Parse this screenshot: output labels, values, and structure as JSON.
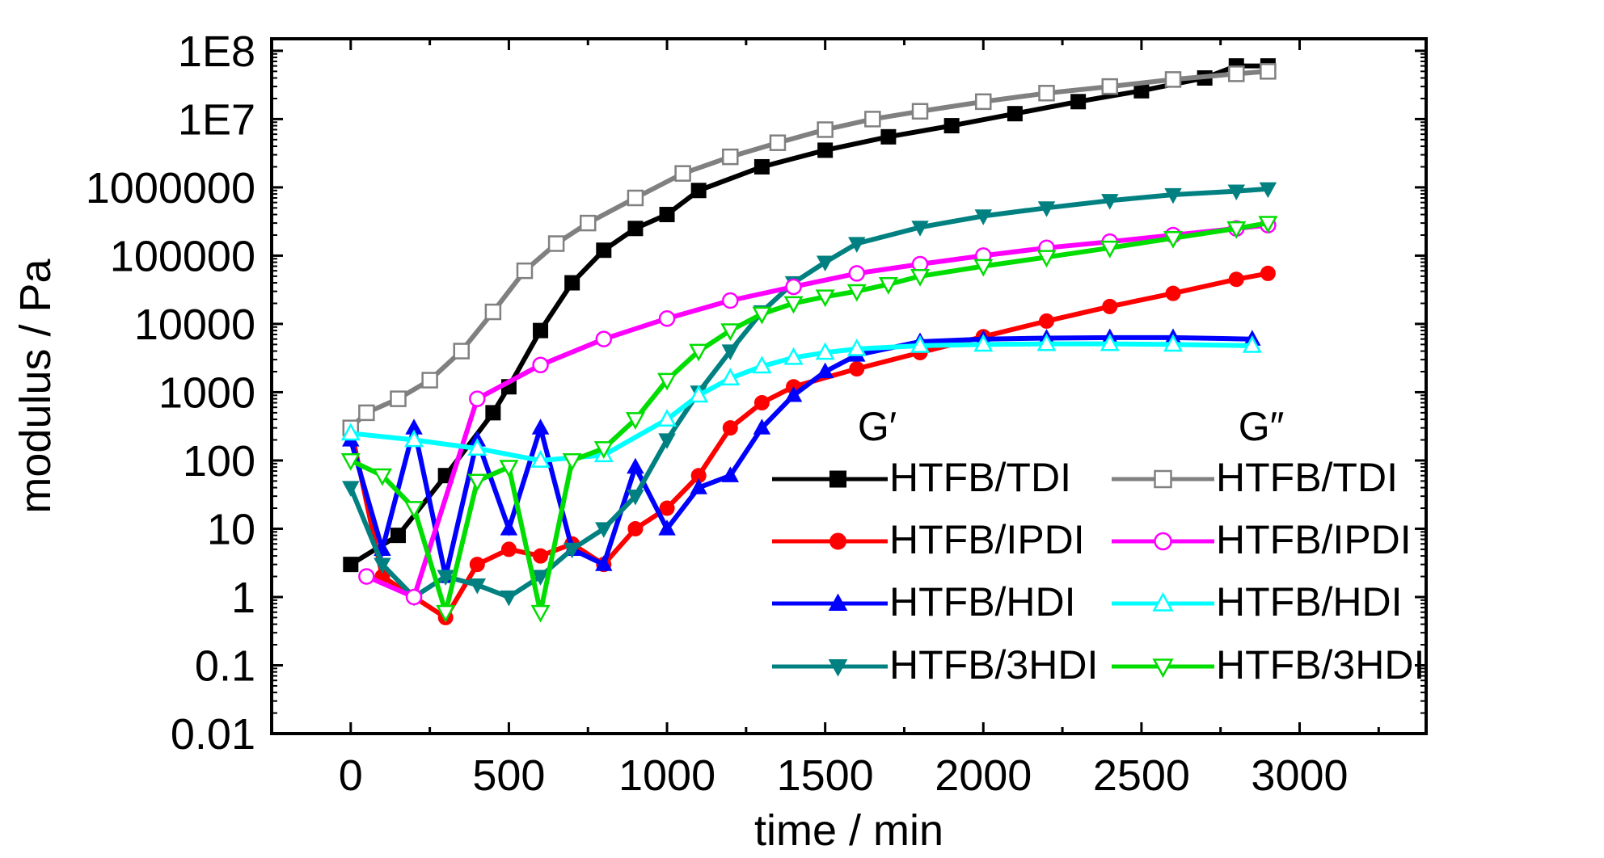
{
  "chart_data": {
    "type": "scatter",
    "xlabel": "time / min",
    "ylabel": "modulus / Pa",
    "xlim": [
      -250,
      3400
    ],
    "ylim": [
      0.01,
      150000000
    ],
    "y_scale": "log",
    "x_ticks": [
      0,
      500,
      1000,
      1500,
      2000,
      2500,
      3000
    ],
    "y_ticks": [
      "1E8",
      "1E7",
      "1000000",
      "100000",
      "10000",
      "1000",
      "100",
      "10",
      "1",
      "0.1",
      "0.01"
    ],
    "legend_headers": [
      "G′",
      "G″"
    ],
    "legend_placement": "bottom-right",
    "series": [
      {
        "name": "HTFB/TDI",
        "modulus": "G′",
        "color": "#000000",
        "marker": "square-filled",
        "x": [
          0,
          150,
          300,
          450,
          500,
          600,
          700,
          800,
          900,
          1000,
          1100,
          1300,
          1500,
          1700,
          1900,
          2100,
          2300,
          2500,
          2700,
          2800,
          2900
        ],
        "y": [
          3,
          8,
          60,
          500,
          1200,
          8000,
          40000,
          120000,
          250000,
          400000,
          900000,
          2000000,
          3500000,
          5500000,
          8000000,
          12000000,
          18000000,
          26000000,
          40000000,
          60000000,
          60000000
        ]
      },
      {
        "name": "HTFB/IPDI",
        "modulus": "G′",
        "color": "#ff0000",
        "marker": "circle-filled",
        "x": [
          0,
          100,
          200,
          300,
          400,
          500,
          600,
          700,
          800,
          900,
          1000,
          1100,
          1200,
          1300,
          1400,
          1600,
          1800,
          2000,
          2200,
          2400,
          2600,
          2800,
          2900
        ],
        "y": [
          300,
          2,
          1,
          0.5,
          3,
          5,
          4,
          6,
          3,
          10,
          20,
          60,
          300,
          700,
          1200,
          2200,
          3800,
          6500,
          11000,
          18000,
          28000,
          45000,
          55000
        ]
      },
      {
        "name": "HTFB/HDI",
        "modulus": "G′",
        "color": "#0000ff",
        "marker": "triangle-up-filled",
        "x": [
          0,
          100,
          200,
          300,
          400,
          500,
          600,
          700,
          800,
          900,
          1000,
          1100,
          1200,
          1300,
          1400,
          1500,
          1600,
          1800,
          2000,
          2200,
          2400,
          2600,
          2850
        ],
        "y": [
          200,
          5,
          300,
          2,
          200,
          10,
          300,
          5,
          3,
          80,
          10,
          40,
          60,
          300,
          900,
          2000,
          3500,
          5500,
          6000,
          6200,
          6300,
          6300,
          6000
        ]
      },
      {
        "name": "HTFB/3HDI",
        "modulus": "G′",
        "color": "#008080",
        "marker": "triangle-down-filled",
        "x": [
          0,
          100,
          200,
          300,
          400,
          500,
          600,
          700,
          800,
          900,
          1000,
          1100,
          1200,
          1300,
          1400,
          1500,
          1600,
          1800,
          2000,
          2200,
          2400,
          2600,
          2800,
          2900
        ],
        "y": [
          40,
          3,
          1,
          2,
          1.5,
          1,
          2,
          5,
          10,
          30,
          200,
          1000,
          4000,
          15000,
          40000,
          80000,
          150000,
          260000,
          380000,
          500000,
          640000,
          780000,
          880000,
          950000
        ]
      },
      {
        "name": "HTFB/TDI",
        "modulus": "G″",
        "color": "#808080",
        "marker": "square-open",
        "x": [
          0,
          50,
          150,
          250,
          350,
          450,
          550,
          650,
          750,
          900,
          1050,
          1200,
          1350,
          1500,
          1650,
          1800,
          2000,
          2200,
          2400,
          2600,
          2800,
          2900
        ],
        "y": [
          300,
          500,
          800,
          1500,
          4000,
          15000,
          60000,
          150000,
          300000,
          700000,
          1600000,
          2800000,
          4500000,
          7000000,
          10000000,
          13000000,
          18000000,
          24000000,
          30000000,
          38000000,
          46000000,
          50000000
        ]
      },
      {
        "name": "HTFB/IPDI",
        "modulus": "G″",
        "color": "#ff00ff",
        "marker": "circle-open",
        "x": [
          50,
          200,
          400,
          600,
          800,
          1000,
          1200,
          1400,
          1600,
          1800,
          2000,
          2200,
          2400,
          2600,
          2800,
          2900
        ],
        "y": [
          2,
          1,
          800,
          2500,
          6000,
          12000,
          22000,
          35000,
          55000,
          75000,
          100000,
          130000,
          160000,
          200000,
          250000,
          280000
        ]
      },
      {
        "name": "HTFB/HDI",
        "modulus": "G″",
        "color": "#00ffff",
        "marker": "triangle-up-open",
        "x": [
          0,
          200,
          400,
          600,
          800,
          1000,
          1100,
          1200,
          1300,
          1400,
          1500,
          1600,
          1800,
          2000,
          2200,
          2400,
          2600,
          2850
        ],
        "y": [
          250,
          200,
          150,
          100,
          120,
          400,
          900,
          1600,
          2400,
          3200,
          3800,
          4300,
          4800,
          5000,
          5100,
          5100,
          5000,
          4800
        ]
      },
      {
        "name": "HTFB/3HDI",
        "modulus": "G″",
        "color": "#00dd00",
        "marker": "triangle-down-open",
        "x": [
          0,
          100,
          200,
          300,
          400,
          500,
          600,
          700,
          800,
          900,
          1000,
          1100,
          1200,
          1300,
          1400,
          1500,
          1600,
          1700,
          1800,
          2000,
          2200,
          2400,
          2600,
          2800,
          2900
        ],
        "y": [
          100,
          60,
          20,
          0.6,
          50,
          80,
          0.6,
          100,
          150,
          400,
          1500,
          4000,
          8000,
          14000,
          20000,
          25000,
          30000,
          38000,
          50000,
          70000,
          95000,
          130000,
          180000,
          250000,
          300000
        ]
      }
    ]
  }
}
